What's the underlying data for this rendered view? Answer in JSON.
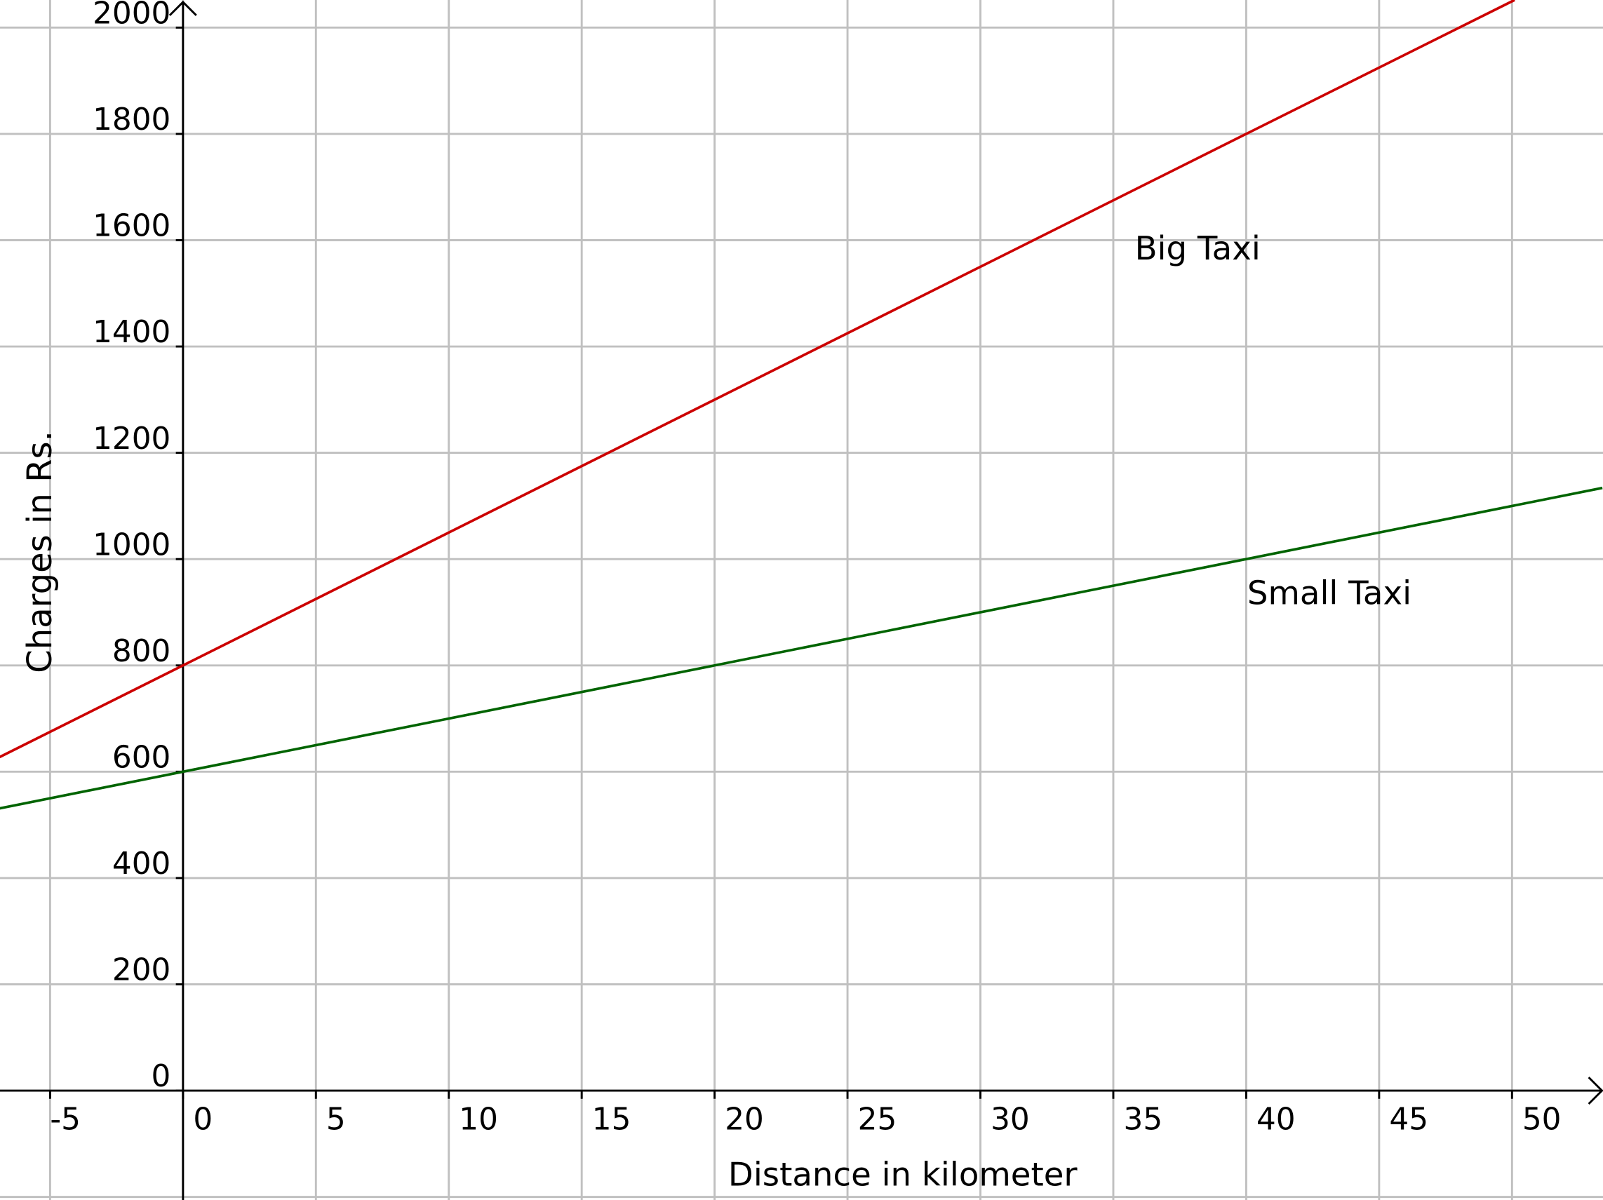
{
  "chart_data": {
    "type": "line",
    "xlabel": "Distance in kilometer",
    "ylabel": "Charges in Rs.",
    "xlim": [
      -6.9,
      53.4
    ],
    "ylim": [
      -98,
      2052
    ],
    "grid": true,
    "x_ticks": [
      -5,
      0,
      5,
      10,
      15,
      20,
      25,
      30,
      35,
      40,
      45,
      50
    ],
    "y_ticks": [
      0,
      200,
      400,
      600,
      800,
      1000,
      1200,
      1400,
      1600,
      1800,
      2000
    ],
    "series": [
      {
        "name": "Big Taxi",
        "intercept": 800,
        "slope": 25,
        "color": "#cc0000",
        "x": [
          -6.9,
          0,
          20,
          40,
          50.1
        ],
        "y": [
          627.5,
          800,
          1300,
          1800,
          2052
        ]
      },
      {
        "name": "Small Taxi",
        "intercept": 600,
        "slope": 10,
        "color": "#006400",
        "x": [
          -6.9,
          0,
          20,
          40,
          53.4
        ],
        "y": [
          531,
          600,
          800,
          1000,
          1134
        ]
      }
    ],
    "annotations": [
      {
        "text": "Big Taxi",
        "x": 35.8,
        "y": 1590
      },
      {
        "text": "Small Taxi",
        "x": 40.0,
        "y": 942
      }
    ],
    "colors": {
      "grid": "#c0c0c0",
      "axis": "#000000"
    }
  }
}
